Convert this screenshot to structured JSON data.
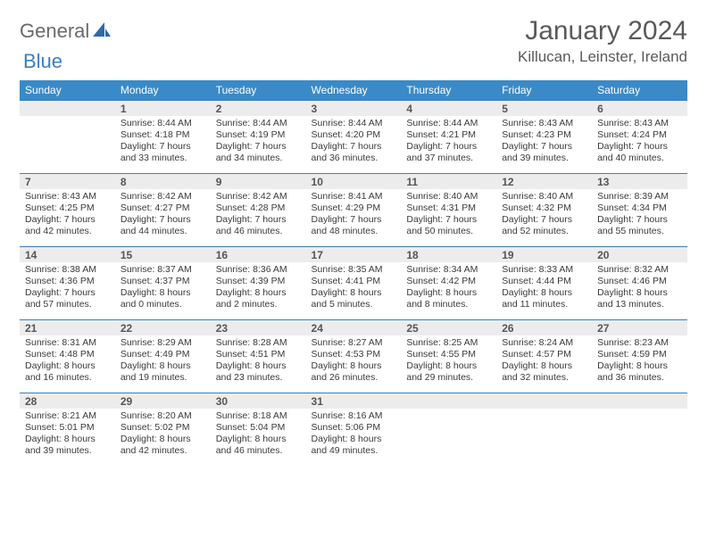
{
  "brand": {
    "part1": "General",
    "part2": "Blue"
  },
  "title": "January 2024",
  "location": "Killucan, Leinster, Ireland",
  "colors": {
    "header_bg": "#3a8ac8",
    "header_text": "#ffffff",
    "daynum_bg": "#ececec",
    "daynum_border": "#3a7fb8",
    "body_text": "#3a3a3a",
    "brand_gray": "#6a6a6a",
    "brand_blue": "#3a7fc4"
  },
  "dow": [
    "Sunday",
    "Monday",
    "Tuesday",
    "Wednesday",
    "Thursday",
    "Friday",
    "Saturday"
  ],
  "weeks": [
    [
      {
        "n": "",
        "sr": "",
        "ss": "",
        "dl1": "",
        "dl2": ""
      },
      {
        "n": "1",
        "sr": "Sunrise: 8:44 AM",
        "ss": "Sunset: 4:18 PM",
        "dl1": "Daylight: 7 hours",
        "dl2": "and 33 minutes."
      },
      {
        "n": "2",
        "sr": "Sunrise: 8:44 AM",
        "ss": "Sunset: 4:19 PM",
        "dl1": "Daylight: 7 hours",
        "dl2": "and 34 minutes."
      },
      {
        "n": "3",
        "sr": "Sunrise: 8:44 AM",
        "ss": "Sunset: 4:20 PM",
        "dl1": "Daylight: 7 hours",
        "dl2": "and 36 minutes."
      },
      {
        "n": "4",
        "sr": "Sunrise: 8:44 AM",
        "ss": "Sunset: 4:21 PM",
        "dl1": "Daylight: 7 hours",
        "dl2": "and 37 minutes."
      },
      {
        "n": "5",
        "sr": "Sunrise: 8:43 AM",
        "ss": "Sunset: 4:23 PM",
        "dl1": "Daylight: 7 hours",
        "dl2": "and 39 minutes."
      },
      {
        "n": "6",
        "sr": "Sunrise: 8:43 AM",
        "ss": "Sunset: 4:24 PM",
        "dl1": "Daylight: 7 hours",
        "dl2": "and 40 minutes."
      }
    ],
    [
      {
        "n": "7",
        "sr": "Sunrise: 8:43 AM",
        "ss": "Sunset: 4:25 PM",
        "dl1": "Daylight: 7 hours",
        "dl2": "and 42 minutes."
      },
      {
        "n": "8",
        "sr": "Sunrise: 8:42 AM",
        "ss": "Sunset: 4:27 PM",
        "dl1": "Daylight: 7 hours",
        "dl2": "and 44 minutes."
      },
      {
        "n": "9",
        "sr": "Sunrise: 8:42 AM",
        "ss": "Sunset: 4:28 PM",
        "dl1": "Daylight: 7 hours",
        "dl2": "and 46 minutes."
      },
      {
        "n": "10",
        "sr": "Sunrise: 8:41 AM",
        "ss": "Sunset: 4:29 PM",
        "dl1": "Daylight: 7 hours",
        "dl2": "and 48 minutes."
      },
      {
        "n": "11",
        "sr": "Sunrise: 8:40 AM",
        "ss": "Sunset: 4:31 PM",
        "dl1": "Daylight: 7 hours",
        "dl2": "and 50 minutes."
      },
      {
        "n": "12",
        "sr": "Sunrise: 8:40 AM",
        "ss": "Sunset: 4:32 PM",
        "dl1": "Daylight: 7 hours",
        "dl2": "and 52 minutes."
      },
      {
        "n": "13",
        "sr": "Sunrise: 8:39 AM",
        "ss": "Sunset: 4:34 PM",
        "dl1": "Daylight: 7 hours",
        "dl2": "and 55 minutes."
      }
    ],
    [
      {
        "n": "14",
        "sr": "Sunrise: 8:38 AM",
        "ss": "Sunset: 4:36 PM",
        "dl1": "Daylight: 7 hours",
        "dl2": "and 57 minutes."
      },
      {
        "n": "15",
        "sr": "Sunrise: 8:37 AM",
        "ss": "Sunset: 4:37 PM",
        "dl1": "Daylight: 8 hours",
        "dl2": "and 0 minutes."
      },
      {
        "n": "16",
        "sr": "Sunrise: 8:36 AM",
        "ss": "Sunset: 4:39 PM",
        "dl1": "Daylight: 8 hours",
        "dl2": "and 2 minutes."
      },
      {
        "n": "17",
        "sr": "Sunrise: 8:35 AM",
        "ss": "Sunset: 4:41 PM",
        "dl1": "Daylight: 8 hours",
        "dl2": "and 5 minutes."
      },
      {
        "n": "18",
        "sr": "Sunrise: 8:34 AM",
        "ss": "Sunset: 4:42 PM",
        "dl1": "Daylight: 8 hours",
        "dl2": "and 8 minutes."
      },
      {
        "n": "19",
        "sr": "Sunrise: 8:33 AM",
        "ss": "Sunset: 4:44 PM",
        "dl1": "Daylight: 8 hours",
        "dl2": "and 11 minutes."
      },
      {
        "n": "20",
        "sr": "Sunrise: 8:32 AM",
        "ss": "Sunset: 4:46 PM",
        "dl1": "Daylight: 8 hours",
        "dl2": "and 13 minutes."
      }
    ],
    [
      {
        "n": "21",
        "sr": "Sunrise: 8:31 AM",
        "ss": "Sunset: 4:48 PM",
        "dl1": "Daylight: 8 hours",
        "dl2": "and 16 minutes."
      },
      {
        "n": "22",
        "sr": "Sunrise: 8:29 AM",
        "ss": "Sunset: 4:49 PM",
        "dl1": "Daylight: 8 hours",
        "dl2": "and 19 minutes."
      },
      {
        "n": "23",
        "sr": "Sunrise: 8:28 AM",
        "ss": "Sunset: 4:51 PM",
        "dl1": "Daylight: 8 hours",
        "dl2": "and 23 minutes."
      },
      {
        "n": "24",
        "sr": "Sunrise: 8:27 AM",
        "ss": "Sunset: 4:53 PM",
        "dl1": "Daylight: 8 hours",
        "dl2": "and 26 minutes."
      },
      {
        "n": "25",
        "sr": "Sunrise: 8:25 AM",
        "ss": "Sunset: 4:55 PM",
        "dl1": "Daylight: 8 hours",
        "dl2": "and 29 minutes."
      },
      {
        "n": "26",
        "sr": "Sunrise: 8:24 AM",
        "ss": "Sunset: 4:57 PM",
        "dl1": "Daylight: 8 hours",
        "dl2": "and 32 minutes."
      },
      {
        "n": "27",
        "sr": "Sunrise: 8:23 AM",
        "ss": "Sunset: 4:59 PM",
        "dl1": "Daylight: 8 hours",
        "dl2": "and 36 minutes."
      }
    ],
    [
      {
        "n": "28",
        "sr": "Sunrise: 8:21 AM",
        "ss": "Sunset: 5:01 PM",
        "dl1": "Daylight: 8 hours",
        "dl2": "and 39 minutes."
      },
      {
        "n": "29",
        "sr": "Sunrise: 8:20 AM",
        "ss": "Sunset: 5:02 PM",
        "dl1": "Daylight: 8 hours",
        "dl2": "and 42 minutes."
      },
      {
        "n": "30",
        "sr": "Sunrise: 8:18 AM",
        "ss": "Sunset: 5:04 PM",
        "dl1": "Daylight: 8 hours",
        "dl2": "and 46 minutes."
      },
      {
        "n": "31",
        "sr": "Sunrise: 8:16 AM",
        "ss": "Sunset: 5:06 PM",
        "dl1": "Daylight: 8 hours",
        "dl2": "and 49 minutes."
      },
      {
        "n": "",
        "sr": "",
        "ss": "",
        "dl1": "",
        "dl2": ""
      },
      {
        "n": "",
        "sr": "",
        "ss": "",
        "dl1": "",
        "dl2": ""
      },
      {
        "n": "",
        "sr": "",
        "ss": "",
        "dl1": "",
        "dl2": ""
      }
    ]
  ]
}
